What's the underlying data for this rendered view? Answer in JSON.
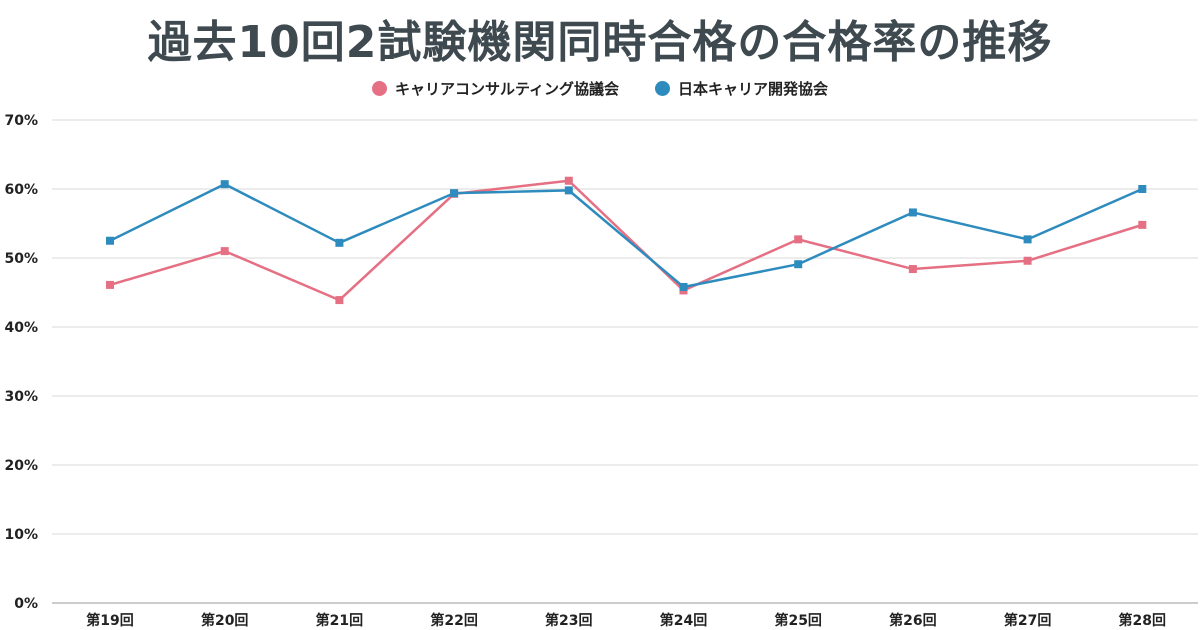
{
  "chart_data": {
    "type": "line",
    "title": "過去10回2試験機関同時合格の合格率の推移",
    "categories": [
      "第19回",
      "第20回",
      "第21回",
      "第22回",
      "第23回",
      "第24回",
      "第25回",
      "第26回",
      "第27回",
      "第28回"
    ],
    "series": [
      {
        "name": "キャリアコンサルティング協議会",
        "color": "#e57083",
        "values": [
          46.1,
          51.0,
          43.9,
          59.3,
          61.2,
          45.3,
          52.7,
          48.4,
          49.6,
          54.8
        ]
      },
      {
        "name": "日本キャリア開発協会",
        "color": "#2e8bbe",
        "values": [
          52.5,
          60.7,
          52.2,
          59.4,
          59.8,
          45.8,
          49.1,
          56.6,
          52.7,
          60.0
        ]
      }
    ],
    "y_ticks": [
      "0%",
      "10%",
      "20%",
      "30%",
      "40%",
      "50%",
      "60%",
      "70%"
    ],
    "ylim": [
      0,
      70
    ],
    "grid": true,
    "legend_position": "top-center",
    "marker": "square"
  }
}
